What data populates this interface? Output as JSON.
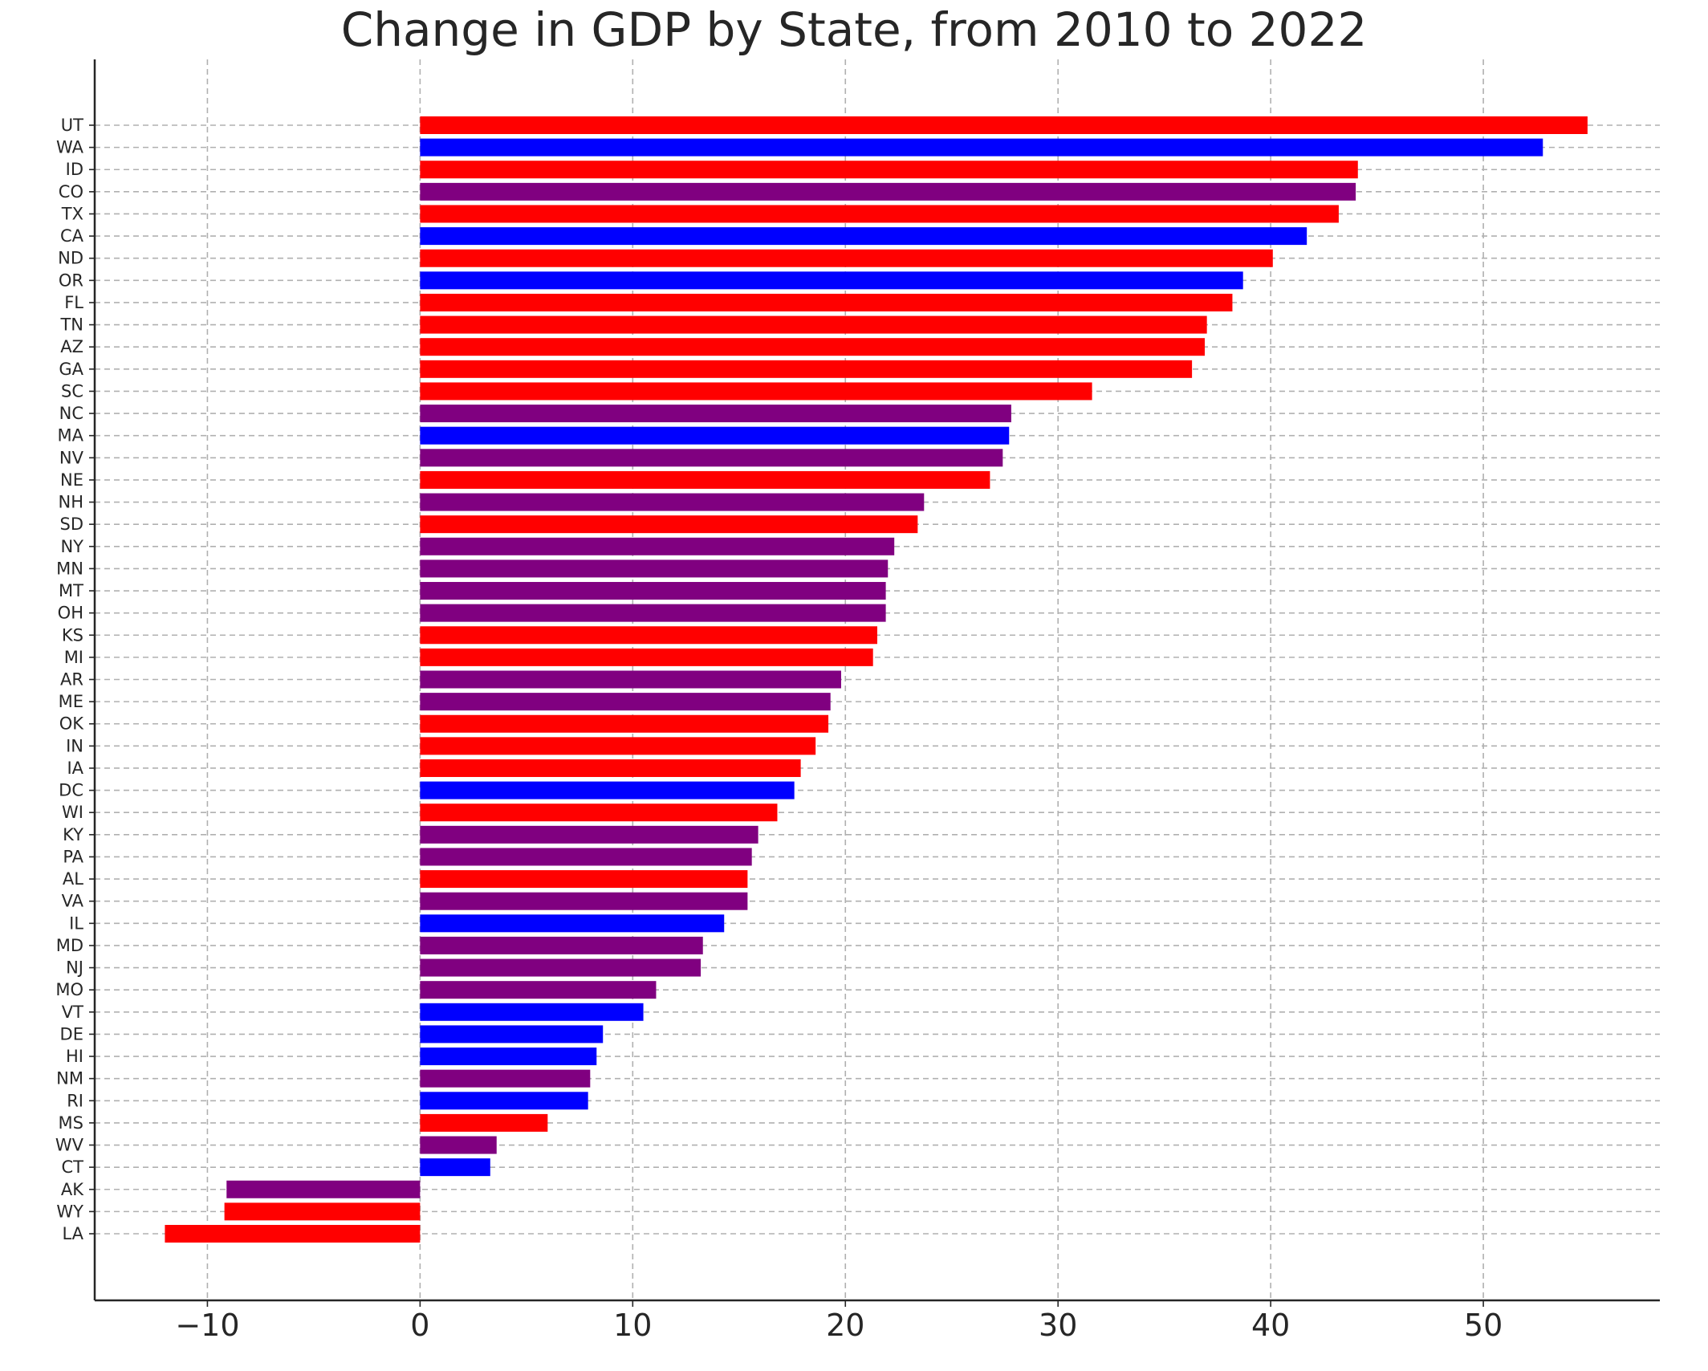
{
  "chart_data": {
    "type": "bar",
    "orientation": "horizontal",
    "title": "Change in GDP by State, from 2010 to 2022",
    "xlabel": "",
    "ylabel": "",
    "xlim": [
      -15.3,
      58.3
    ],
    "xticks": [
      -10,
      0,
      10,
      20,
      30,
      40,
      50
    ],
    "xtick_labels": [
      "−10",
      "0",
      "10",
      "20",
      "30",
      "40",
      "50"
    ],
    "grid": true,
    "colors": {
      "red": "#ff0000",
      "blue": "#0000ff",
      "purple": "#800080"
    },
    "categories": [
      "UT",
      "WA",
      "ID",
      "CO",
      "TX",
      "CA",
      "ND",
      "OR",
      "FL",
      "TN",
      "AZ",
      "GA",
      "SC",
      "NC",
      "MA",
      "NV",
      "NE",
      "NH",
      "SD",
      "NY",
      "MN",
      "MT",
      "OH",
      "KS",
      "MI",
      "AR",
      "ME",
      "OK",
      "IN",
      "IA",
      "DC",
      "WI",
      "KY",
      "PA",
      "AL",
      "VA",
      "IL",
      "MD",
      "NJ",
      "MO",
      "VT",
      "DE",
      "HI",
      "NM",
      "RI",
      "MS",
      "WV",
      "CT",
      "AK",
      "WY",
      "LA"
    ],
    "values": [
      54.9,
      52.8,
      44.1,
      44.0,
      43.2,
      41.7,
      40.1,
      38.7,
      38.2,
      37.0,
      36.9,
      36.3,
      31.6,
      27.8,
      27.7,
      27.4,
      26.8,
      23.7,
      23.4,
      22.3,
      22.0,
      21.9,
      21.9,
      21.5,
      21.3,
      19.8,
      19.3,
      19.2,
      18.6,
      17.9,
      17.6,
      16.8,
      15.9,
      15.6,
      15.4,
      15.4,
      14.3,
      13.3,
      13.2,
      11.1,
      10.5,
      8.6,
      8.3,
      8.0,
      7.9,
      6.0,
      3.6,
      3.3,
      -9.1,
      -9.2,
      -12.0
    ],
    "bar_colors": [
      "red",
      "blue",
      "red",
      "purple",
      "red",
      "blue",
      "red",
      "blue",
      "red",
      "red",
      "red",
      "red",
      "red",
      "purple",
      "blue",
      "purple",
      "red",
      "purple",
      "red",
      "purple",
      "purple",
      "purple",
      "purple",
      "red",
      "red",
      "purple",
      "purple",
      "red",
      "red",
      "red",
      "blue",
      "red",
      "purple",
      "purple",
      "red",
      "purple",
      "blue",
      "purple",
      "purple",
      "purple",
      "blue",
      "blue",
      "blue",
      "purple",
      "blue",
      "red",
      "purple",
      "blue",
      "purple",
      "red",
      "red"
    ]
  }
}
